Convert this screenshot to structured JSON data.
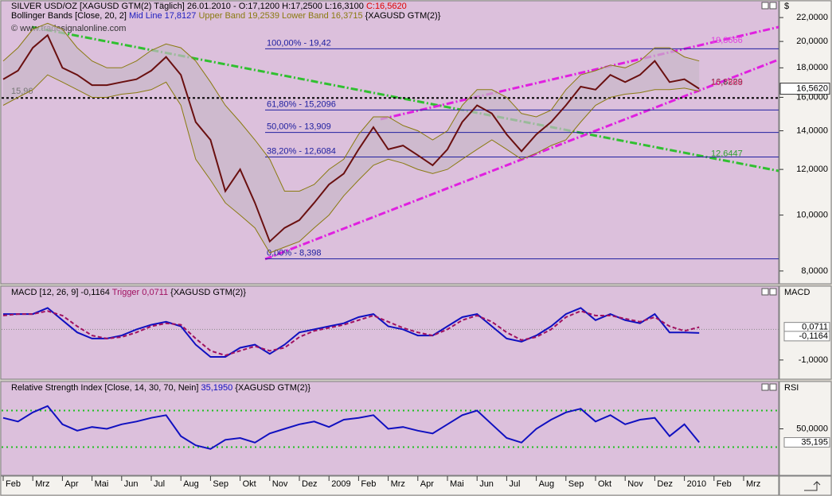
{
  "chart_data": [
    {
      "type": "line",
      "log_scale": true,
      "watermark": "© www.tradesignalonline.com",
      "axis_label": "$",
      "header": [
        {
          "text": "SILVER USD/OZ [XAGUSD GTM(2)  Täglich] 26.01.2010 - O:17,1200 H:17,2500 L:16,3100 ",
          "color": "#000000"
        },
        {
          "text": "C:16,5620",
          "color": "#e00000"
        }
      ],
      "bands_header": [
        {
          "text": "Bollinger Bands [Close, 20, 2] ",
          "color": "#000000"
        },
        {
          "text": "Mid Line 17,8127 ",
          "color": "#2020c0"
        },
        {
          "text": "Upper Band 19,2539 ",
          "color": "#8a7a10"
        },
        {
          "text": "Lower Band 16,3715 ",
          "color": "#8a7a10"
        },
        {
          "text": "{XAGUSD GTM(2)}",
          "color": "#000000"
        }
      ],
      "categories": [
        "Feb",
        null,
        "Mrz",
        null,
        "Apr",
        null,
        "Mai",
        null,
        "Jun",
        null,
        "Jul",
        null,
        "Aug",
        null,
        "Sep",
        null,
        "Okt",
        null,
        "Nov",
        null,
        "Dez",
        null,
        "2009",
        null,
        "Feb",
        null,
        "Mrz",
        null,
        "Apr",
        null,
        "Mai",
        null,
        "Jun",
        null,
        "Jul",
        null,
        "Aug",
        null,
        "Sep",
        null,
        "Okt",
        null,
        "Nov",
        null,
        "Dez",
        null,
        "2010",
        null,
        "Feb",
        null,
        "Mrz",
        null
      ],
      "series": [
        {
          "name": "Close",
          "color": "#6a1010",
          "values": [
            17.2,
            17.8,
            19.5,
            20.5,
            18.0,
            17.5,
            16.8,
            16.8,
            17.0,
            17.2,
            17.8,
            18.8,
            17.5,
            14.5,
            13.5,
            11.0,
            12.0,
            10.5,
            9.0,
            9.5,
            9.8,
            10.5,
            11.3,
            11.8,
            13.0,
            14.2,
            13.0,
            13.2,
            12.7,
            12.2,
            13.0,
            14.5,
            15.5,
            15.0,
            13.8,
            12.9,
            13.8,
            14.5,
            15.5,
            16.7,
            16.5,
            17.5,
            17.0,
            17.5,
            18.5,
            17.0,
            17.2,
            16.562,
            null,
            null,
            null,
            null
          ]
        },
        {
          "name": "Upper Band",
          "color": "#8a7a10",
          "values": [
            18.5,
            19.5,
            21.0,
            21.5,
            21.0,
            19.5,
            18.5,
            18.0,
            18.0,
            18.5,
            19.3,
            19.8,
            19.5,
            18.5,
            17.0,
            15.5,
            14.5,
            13.5,
            12.5,
            11.0,
            11.0,
            11.3,
            12.0,
            12.5,
            13.8,
            14.8,
            14.8,
            14.3,
            14.0,
            13.5,
            14.0,
            15.5,
            16.5,
            16.5,
            16.0,
            15.0,
            14.8,
            15.2,
            16.5,
            17.5,
            17.8,
            18.2,
            18.0,
            18.5,
            19.5,
            19.5,
            18.8,
            18.5,
            null,
            null,
            null,
            null
          ]
        },
        {
          "name": "Lower Band",
          "color": "#8a7a10",
          "values": [
            15.5,
            16.0,
            16.5,
            17.5,
            17.0,
            16.5,
            16.0,
            16.0,
            16.2,
            16.3,
            16.5,
            17.0,
            15.5,
            12.5,
            11.5,
            10.5,
            10.0,
            9.5,
            8.6,
            8.8,
            9.0,
            9.5,
            10.0,
            10.8,
            11.5,
            12.2,
            12.5,
            12.3,
            12.0,
            11.8,
            12.0,
            12.5,
            13.0,
            13.5,
            13.0,
            12.5,
            12.8,
            13.2,
            13.5,
            14.5,
            15.5,
            16.0,
            16.2,
            16.3,
            16.5,
            16.5,
            16.6,
            16.4,
            null,
            null,
            null,
            null
          ]
        }
      ],
      "band_fill": "#c8b8c8",
      "ylim": [
        7.65,
        23.3
      ],
      "yticks": [
        {
          "value": 22,
          "label": "22,0000"
        },
        {
          "value": 20,
          "label": "20,0000"
        },
        {
          "value": 18,
          "label": "18,0000"
        },
        {
          "value": 16,
          "label": "16,0000"
        },
        {
          "value": 14,
          "label": "14,0000"
        },
        {
          "value": 12,
          "label": "12,0000"
        },
        {
          "value": 10,
          "label": "10,0000"
        },
        {
          "value": 8,
          "label": "8,0000"
        }
      ],
      "last_label": {
        "value": 16.562,
        "label": "16,5620"
      },
      "fib_levels": [
        {
          "value": 19.42,
          "label": "100,00% - 19,42"
        },
        {
          "value": 15.2096,
          "label": "61,80% - 15,2096"
        },
        {
          "value": 13.909,
          "label": "50,00% - 13,909"
        },
        {
          "value": 12.6084,
          "label": "38,20% - 12,6084"
        },
        {
          "value": 8.398,
          "label": "0,00% - 8,398"
        }
      ],
      "support": {
        "value": 15.96,
        "label": "15,96"
      },
      "annotations": [
        {
          "value": 19.8666,
          "label": "19,8666",
          "color": "#e040e0"
        },
        {
          "value": 16.8229,
          "label": "16,8229",
          "color": "#333333"
        },
        {
          "value": 16.7868,
          "label": "16,7868",
          "color": "#e03070"
        },
        {
          "value": 12.6447,
          "label": "12,6447",
          "color": "#30a030"
        }
      ]
    },
    {
      "type": "line",
      "axis_label": "MACD",
      "header": [
        {
          "text": "MACD [12, 26, 9] -0,1164 ",
          "color": "#000000"
        },
        {
          "text": "Trigger 0,0711 ",
          "color": "#a01060"
        },
        {
          "text": "{XAGUSD GTM(2)}",
          "color": "#000000"
        }
      ],
      "series": [
        {
          "name": "MACD",
          "color": "#1010c0",
          "values": [
            0.5,
            0.5,
            0.5,
            0.7,
            0.3,
            -0.1,
            -0.3,
            -0.3,
            -0.2,
            0,
            0.15,
            0.25,
            0.1,
            -0.5,
            -0.9,
            -0.9,
            -0.6,
            -0.5,
            -0.8,
            -0.5,
            -0.1,
            0,
            0.1,
            0.2,
            0.4,
            0.5,
            0.1,
            0,
            -0.2,
            -0.2,
            0.1,
            0.4,
            0.5,
            0.1,
            -0.3,
            -0.4,
            -0.2,
            0.1,
            0.5,
            0.7,
            0.3,
            0.5,
            0.3,
            0.2,
            0.5,
            -0.1,
            -0.1,
            -0.1164,
            null,
            null,
            null,
            null
          ]
        },
        {
          "name": "Trigger",
          "color": "#a01060",
          "values": [
            0.45,
            0.5,
            0.5,
            0.6,
            0.45,
            0.1,
            -0.2,
            -0.3,
            -0.25,
            -0.1,
            0.1,
            0.2,
            0.15,
            -0.3,
            -0.7,
            -0.85,
            -0.7,
            -0.55,
            -0.7,
            -0.6,
            -0.25,
            -0.05,
            0.05,
            0.15,
            0.3,
            0.45,
            0.25,
            0.05,
            -0.1,
            -0.2,
            0,
            0.3,
            0.45,
            0.25,
            -0.1,
            -0.35,
            -0.25,
            0,
            0.4,
            0.6,
            0.45,
            0.45,
            0.35,
            0.25,
            0.4,
            0.1,
            -0.05,
            0.0711,
            null,
            null,
            null,
            null
          ]
        }
      ],
      "ylim": [
        -1.6,
        1.36
      ],
      "yticks": [
        {
          "value": -1,
          "label": "-1,0000"
        }
      ],
      "zero_line": 0,
      "value_labels": [
        {
          "value": 0.0711,
          "label": "0,0711"
        },
        {
          "value": -0.1164,
          "label": "-0,1164"
        }
      ]
    },
    {
      "type": "line",
      "axis_label": "RSI",
      "header": [
        {
          "text": "Relative Strength Index [Close, 14, 30, 70, Nein] ",
          "color": "#000000"
        },
        {
          "text": "35,1950 ",
          "color": "#1010c0"
        },
        {
          "text": "{XAGUSD GTM(2)}",
          "color": "#000000"
        }
      ],
      "series": [
        {
          "name": "RSI",
          "color": "#1010c0",
          "values": [
            62,
            58,
            68,
            75,
            55,
            48,
            52,
            50,
            55,
            58,
            62,
            65,
            42,
            32,
            28,
            38,
            40,
            35,
            45,
            50,
            55,
            58,
            52,
            60,
            62,
            65,
            50,
            52,
            48,
            45,
            55,
            65,
            70,
            55,
            40,
            35,
            50,
            60,
            68,
            72,
            58,
            65,
            55,
            60,
            62,
            42,
            55,
            35.195,
            null,
            null,
            null,
            null
          ]
        }
      ],
      "ylim": [
        0,
        100
      ],
      "yticks": [
        {
          "value": 50,
          "label": "50,0000"
        }
      ],
      "levels": [
        30,
        70
      ],
      "level_color": "#20c020",
      "value_labels": [
        {
          "value": 35.195,
          "label": "35,195"
        }
      ]
    }
  ]
}
